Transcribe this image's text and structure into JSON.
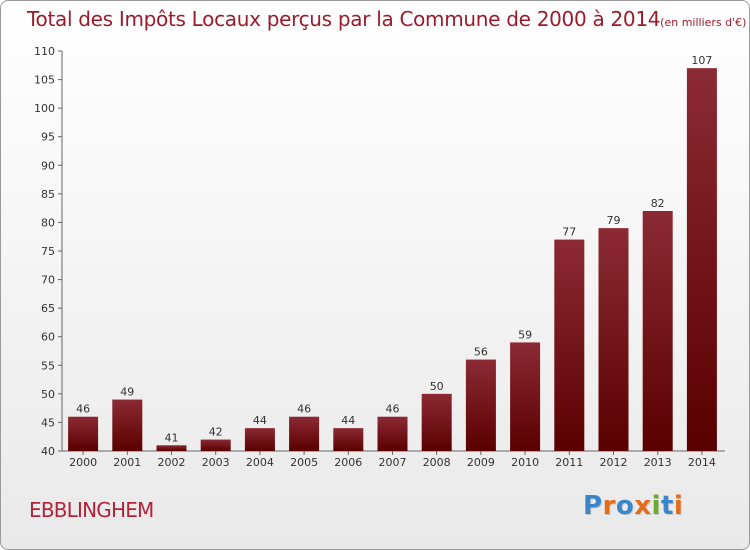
{
  "header": {
    "title": "Total des Impôts Locaux perçus par la Commune de 2000 à 2014",
    "unit": "(en milliers d'€)"
  },
  "footer": {
    "commune": "EBBLINGHEM",
    "logo_text": "Proxiti"
  },
  "colors": {
    "bar_light": "#8b2a33",
    "bar_dark": "#5a0000",
    "title": "#9b1b2b",
    "logo": [
      "#3a86c8",
      "#e36d1a",
      "#3a86c8",
      "#e36d1a",
      "#6aab2c",
      "#3a86c8",
      "#e36d1a"
    ]
  },
  "chart_data": {
    "type": "bar",
    "title": "Total des Impôts Locaux perçus par la Commune de 2000 à 2014",
    "categories": [
      "2000",
      "2001",
      "2002",
      "2003",
      "2004",
      "2005",
      "2006",
      "2007",
      "2008",
      "2009",
      "2010",
      "2011",
      "2012",
      "2013",
      "2014"
    ],
    "values": [
      46,
      49,
      41,
      42,
      44,
      46,
      44,
      46,
      50,
      56,
      59,
      77,
      79,
      82,
      107
    ],
    "ylim": [
      40,
      110
    ],
    "yticks": [
      40,
      45,
      50,
      55,
      60,
      65,
      70,
      75,
      80,
      85,
      90,
      95,
      100,
      105,
      110
    ],
    "grid": false,
    "xlabel": "",
    "ylabel": ""
  }
}
